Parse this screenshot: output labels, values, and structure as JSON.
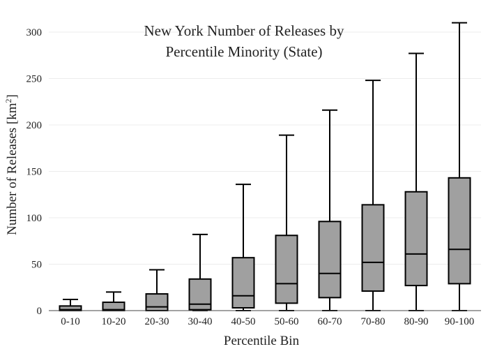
{
  "chart_data": {
    "type": "box",
    "title_lines": [
      "New York Number of Releases by",
      "Percentile Minority (State)"
    ],
    "xlabel": "Percentile Bin",
    "ylabel_main": "Number of Releases  [km",
    "ylabel_sup": "2",
    "ylabel_tail": "]",
    "ylim": [
      0,
      312
    ],
    "yticks": [
      0,
      50,
      100,
      150,
      200,
      250,
      300
    ],
    "grid": true,
    "color": "#a0a0a0",
    "categories": [
      "0-10",
      "10-20",
      "20-30",
      "30-40",
      "40-50",
      "50-60",
      "60-70",
      "70-80",
      "80-90",
      "90-100"
    ],
    "boxes": [
      {
        "min": 0,
        "q1": 0,
        "median": 1,
        "q3": 5,
        "max": 12
      },
      {
        "min": 0,
        "q1": 0,
        "median": 1,
        "q3": 9,
        "max": 20
      },
      {
        "min": 0,
        "q1": 0,
        "median": 4,
        "q3": 18,
        "max": 44
      },
      {
        "min": 0,
        "q1": 1,
        "median": 7,
        "q3": 34,
        "max": 82
      },
      {
        "min": 0,
        "q1": 3,
        "median": 16,
        "q3": 57,
        "max": 136
      },
      {
        "min": 0,
        "q1": 8,
        "median": 29,
        "q3": 81,
        "max": 189
      },
      {
        "min": 0,
        "q1": 14,
        "median": 40,
        "q3": 96,
        "max": 216
      },
      {
        "min": 0,
        "q1": 21,
        "median": 52,
        "q3": 114,
        "max": 248
      },
      {
        "min": 0,
        "q1": 27,
        "median": 61,
        "q3": 128,
        "max": 277
      },
      {
        "min": 0,
        "q1": 29,
        "median": 66,
        "q3": 143,
        "max": 310
      }
    ]
  }
}
